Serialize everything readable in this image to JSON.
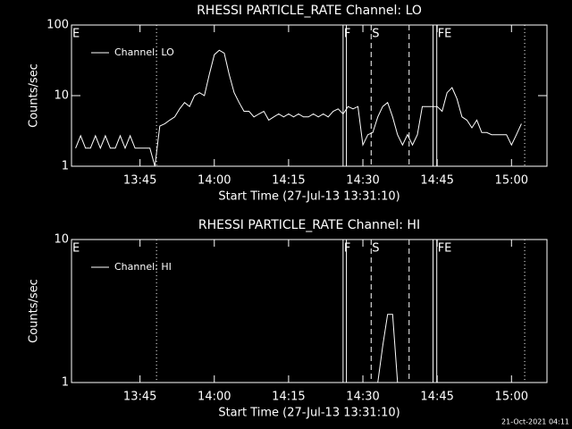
{
  "chart_data": [
    {
      "type": "line",
      "title": "RHESSI PARTICLE_RATE Channel: LO",
      "xlabel": "Start Time (27-Jul-13 13:31:10)",
      "ylabel": "Counts/sec",
      "x": [
        "13:32",
        "13:33",
        "13:34",
        "13:35",
        "13:36",
        "13:37",
        "13:38",
        "13:39",
        "13:40",
        "13:41",
        "13:42",
        "13:43",
        "13:44",
        "13:45",
        "13:46",
        "13:47",
        "13:48",
        "13:49",
        "13:50",
        "13:51",
        "13:52",
        "13:53",
        "13:54",
        "13:55",
        "13:56",
        "13:57",
        "13:58",
        "13:59",
        "14:00",
        "14:01",
        "14:02",
        "14:03",
        "14:04",
        "14:05",
        "14:06",
        "14:07",
        "14:08",
        "14:09",
        "14:10",
        "14:11",
        "14:12",
        "14:13",
        "14:14",
        "14:15",
        "14:16",
        "14:17",
        "14:18",
        "14:19",
        "14:20",
        "14:21",
        "14:22",
        "14:23",
        "14:24",
        "14:25",
        "14:26",
        "14:27",
        "14:28",
        "14:29",
        "14:30",
        "14:31",
        "14:32",
        "14:33",
        "14:34",
        "14:35",
        "14:36",
        "14:37",
        "14:38",
        "14:39",
        "14:40",
        "14:41",
        "14:42",
        "14:43",
        "14:44",
        "14:45",
        "14:46",
        "14:47",
        "14:48",
        "14:49",
        "14:50",
        "14:51",
        "14:52",
        "14:53",
        "14:54",
        "14:55",
        "14:56",
        "14:57",
        "14:58",
        "14:59",
        "15:00",
        "15:01",
        "15:02"
      ],
      "series": [
        {
          "name": "Channel: LO",
          "color": "#ffffff",
          "values": [
            1.8,
            2.7,
            1.8,
            1.8,
            2.7,
            1.8,
            2.7,
            1.8,
            1.8,
            2.7,
            1.8,
            2.7,
            1.8,
            1.8,
            1.8,
            1.8,
            1.0,
            3.7,
            4.0,
            4.5,
            5.0,
            6.5,
            8.0,
            7.0,
            10,
            11,
            10,
            20,
            38,
            44,
            40,
            20,
            11,
            8,
            6,
            6,
            5,
            5.5,
            6,
            4.5,
            5,
            5.5,
            5,
            5.5,
            5,
            5.5,
            5,
            5,
            5.5,
            5,
            5.5,
            5,
            6,
            6.5,
            5.5,
            7,
            6.5,
            7,
            2,
            2.8,
            3,
            5,
            7,
            8,
            5,
            2.8,
            2,
            2.8,
            2,
            2.8,
            7,
            7,
            7,
            7,
            6,
            11,
            13,
            9,
            5,
            4.5,
            3.5,
            4.5,
            3,
            3,
            2.8,
            2.8,
            2.8,
            2.8,
            2,
            2.8,
            4
          ]
        }
      ],
      "xlim": [
        "13:31:10",
        "15:07:10"
      ],
      "xticks": [
        "13:45",
        "14:00",
        "14:15",
        "14:30",
        "14:45",
        "15:00"
      ],
      "ylim": [
        1,
        100
      ],
      "yticks": [
        1,
        10,
        100
      ],
      "log_y": true,
      "legend": "upper left",
      "markers": [
        {
          "x": "13:48:20",
          "style": "dotted"
        },
        {
          "x": "14:26:00",
          "style": "solid"
        },
        {
          "x": "14:26:40",
          "style": "solid"
        },
        {
          "x": "14:31:40",
          "style": "dashed"
        },
        {
          "x": "14:39:20",
          "style": "dashed"
        },
        {
          "x": "14:44:10",
          "style": "solid"
        },
        {
          "x": "14:44:55",
          "style": "solid"
        },
        {
          "x": "15:02:40",
          "style": "dotted"
        }
      ],
      "flags": [
        {
          "x": "13:31:10",
          "label": "E"
        },
        {
          "x": "14:26:00",
          "label": "F"
        },
        {
          "x": "14:31:40",
          "label": "S"
        },
        {
          "x": "14:44:55",
          "label": "FE"
        }
      ]
    },
    {
      "type": "line",
      "title": "RHESSI PARTICLE_RATE Channel: HI",
      "xlabel": "Start Time (27-Jul-13 13:31:10)",
      "ylabel": "Counts/sec",
      "x": [
        "14:31",
        "14:32",
        "14:33",
        "14:34",
        "14:35",
        "14:36",
        "14:37"
      ],
      "series": [
        {
          "name": "Channel: HI",
          "color": "#ffffff",
          "values": [
            1,
            1,
            1,
            1.8,
            3,
            3,
            1
          ]
        }
      ],
      "xlim": [
        "13:31:10",
        "15:07:10"
      ],
      "xticks": [
        "13:45",
        "14:00",
        "14:15",
        "14:30",
        "14:45",
        "15:00"
      ],
      "ylim": [
        1,
        10
      ],
      "yticks": [
        1,
        10
      ],
      "log_y": true,
      "legend": "upper left",
      "markers": [
        {
          "x": "13:48:20",
          "style": "dotted"
        },
        {
          "x": "14:26:00",
          "style": "solid"
        },
        {
          "x": "14:26:40",
          "style": "solid"
        },
        {
          "x": "14:31:40",
          "style": "dashed"
        },
        {
          "x": "14:39:20",
          "style": "dashed"
        },
        {
          "x": "14:44:10",
          "style": "solid"
        },
        {
          "x": "14:44:55",
          "style": "solid"
        },
        {
          "x": "15:02:40",
          "style": "dotted"
        }
      ],
      "flags": [
        {
          "x": "13:31:10",
          "label": "E"
        },
        {
          "x": "14:26:00",
          "label": "F"
        },
        {
          "x": "14:31:40",
          "label": "S"
        },
        {
          "x": "14:44:55",
          "label": "FE"
        }
      ]
    }
  ],
  "footer": "21-Oct-2021 04:11"
}
